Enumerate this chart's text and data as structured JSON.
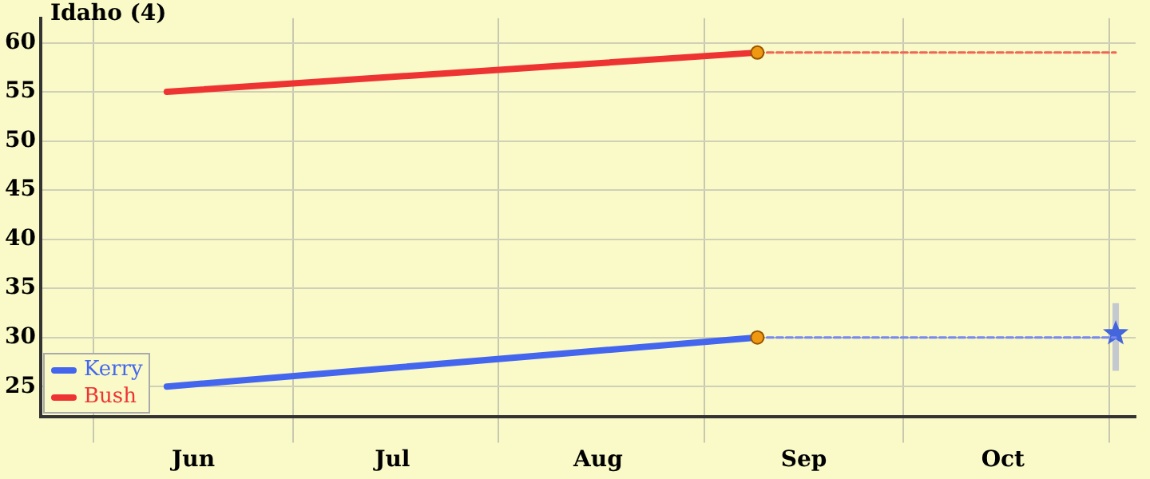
{
  "chart_data": {
    "type": "line",
    "title": "Idaho (4)",
    "xlim": [
      "--05-24",
      "--11-05"
    ],
    "xticks": [
      {
        "value": "--06-01",
        "label": null
      },
      {
        "value": "--06-16",
        "label": "Jun"
      },
      {
        "value": "--07-01",
        "label": null
      },
      {
        "value": "--07-16",
        "label": "Jul"
      },
      {
        "value": "--08-01",
        "label": null
      },
      {
        "value": "--08-16",
        "label": "Aug"
      },
      {
        "value": "--09-01",
        "label": null
      },
      {
        "value": "--09-16",
        "label": "Sep"
      },
      {
        "value": "--10-01",
        "label": null
      },
      {
        "value": "--10-16",
        "label": "Oct"
      },
      {
        "value": "--11-01",
        "label": null
      }
    ],
    "ylim": [
      21.9,
      62.5
    ],
    "yticks": [
      25,
      30,
      35,
      40,
      45,
      50,
      55,
      60
    ],
    "grid": true,
    "legend": "bottom left",
    "series": [
      {
        "name": "Kerry",
        "color": "#4466ee",
        "x": [
          "--06-12",
          "--09-09"
        ],
        "values": [
          25,
          30
        ],
        "line_style": "solid"
      },
      {
        "name": "Bush",
        "color": "#ee3333",
        "x": [
          "--06-12",
          "--09-09"
        ],
        "values": [
          55,
          59
        ],
        "line_style": "solid"
      },
      {
        "color": "#7788ee",
        "x": [
          "--09-09",
          "--11-02"
        ],
        "values": [
          30,
          30
        ],
        "line_style": "dashed"
      },
      {
        "color": "#ee6655",
        "x": [
          "--09-09",
          "--11-02"
        ],
        "values": [
          59,
          59
        ],
        "line_style": "dashed"
      },
      {
        "type": "scatter",
        "color": "#ee9911",
        "x": [
          "--09-09",
          "--09-09"
        ],
        "values": [
          30,
          59
        ],
        "marker": "circle"
      },
      {
        "type": "scatter",
        "color": "#4466dd",
        "x": [
          "--11-02"
        ],
        "values": [
          30.4
        ],
        "errors": [
          [
            26.6,
            33.5
          ]
        ],
        "marker": "star"
      }
    ]
  }
}
